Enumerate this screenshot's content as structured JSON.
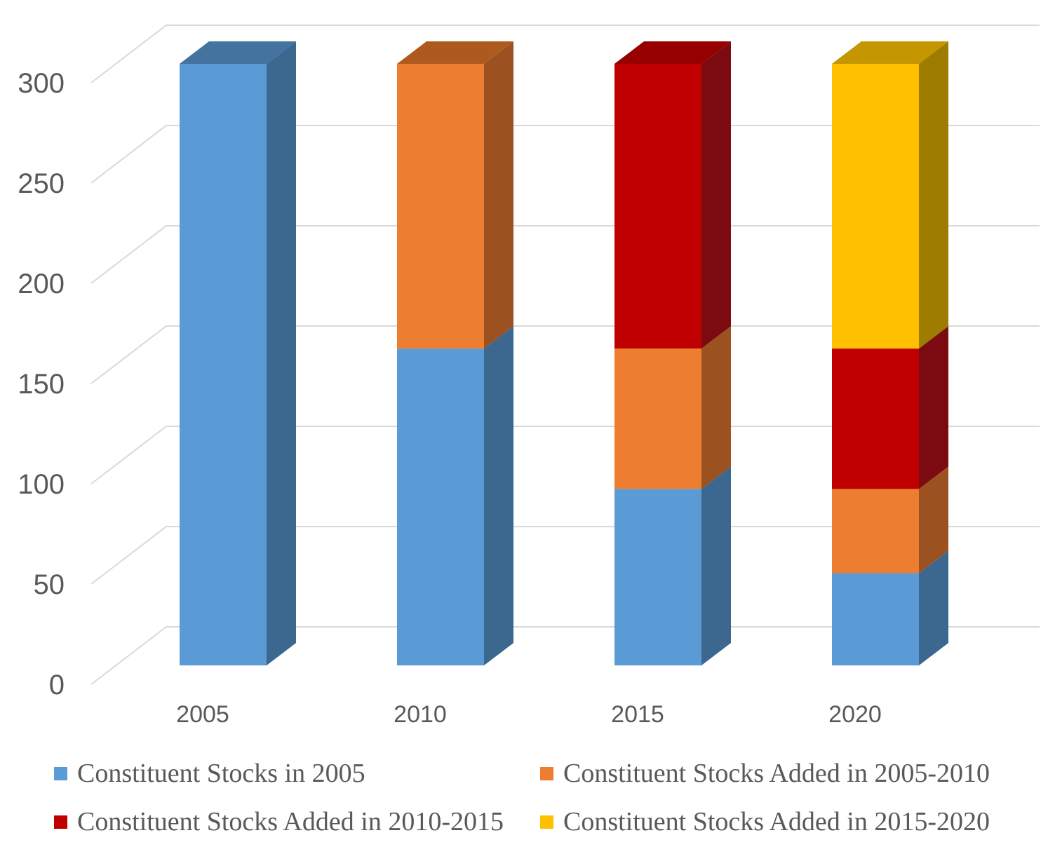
{
  "chart_data": {
    "type": "bar",
    "variant": "3d-stacked-column",
    "title": "",
    "xlabel": "",
    "ylabel": "",
    "categories": [
      "2005",
      "2010",
      "2015",
      "2020"
    ],
    "series": [
      {
        "name": "Constituent Stocks in 2005",
        "values": [
          300,
          158,
          88,
          46
        ],
        "color": "#5B9BD5",
        "side_color": "#3C678F",
        "top_color": "#44739F"
      },
      {
        "name": "Constituent Stocks Added in 2005-2010",
        "values": [
          0,
          142,
          70,
          42
        ],
        "color": "#ED7D31",
        "side_color": "#9C5220",
        "top_color": "#AE5A1F"
      },
      {
        "name": "Constituent Stocks Added in 2010-2015",
        "values": [
          0,
          0,
          142,
          70
        ],
        "color": "#C00000",
        "side_color": "#7B0B10",
        "top_color": "#970000"
      },
      {
        "name": "Constituent Stocks Added in 2015-2020",
        "values": [
          0,
          0,
          0,
          142
        ],
        "color": "#FFC000",
        "side_color": "#9E7C00",
        "top_color": "#C49600"
      }
    ],
    "ylim": [
      0,
      300
    ],
    "yticks": [
      0,
      50,
      100,
      150,
      200,
      250,
      300
    ],
    "grid": true,
    "legend_position": "bottom",
    "axis_text_color": "#595959",
    "grid_color": "#D9D9D9",
    "background": "#FFFFFF"
  }
}
